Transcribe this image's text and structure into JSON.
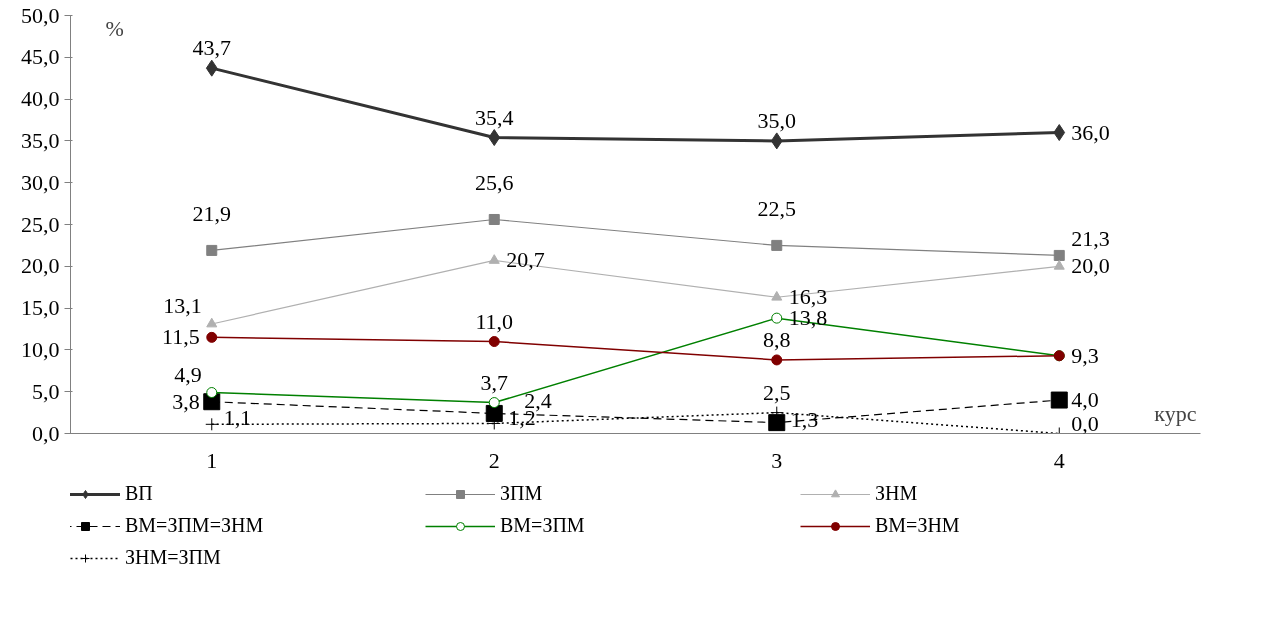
{
  "chart_data": {
    "type": "line",
    "ylabel": "%",
    "xlabel": "курс",
    "categories": [
      "1",
      "2",
      "3",
      "4"
    ],
    "ylim": [
      0,
      50
    ],
    "yticks": [
      {
        "value": 0,
        "label": "0,0"
      },
      {
        "value": 5,
        "label": "5,0"
      },
      {
        "value": 10,
        "label": "10,0"
      },
      {
        "value": 15,
        "label": "15,0"
      },
      {
        "value": 20,
        "label": "20,0"
      },
      {
        "value": 25,
        "label": "25,0"
      },
      {
        "value": 30,
        "label": "30,0"
      },
      {
        "value": 35,
        "label": "35,0"
      },
      {
        "value": 40,
        "label": "40,0"
      },
      {
        "value": 45,
        "label": "45,0"
      },
      {
        "value": 50,
        "label": "50,0"
      }
    ],
    "grid": false,
    "legend": "bottom",
    "series": [
      {
        "name": "ВП",
        "color": "#333333",
        "marker": "diamond",
        "line_style": "solid",
        "values": [
          43.7,
          35.4,
          35.0,
          36.0
        ],
        "value_labels": [
          "43,7",
          "35,4",
          "35,0",
          "36,0"
        ]
      },
      {
        "name": "ЗПМ",
        "color": "#808080",
        "marker": "square",
        "line_style": "solid",
        "values": [
          21.9,
          25.6,
          22.5,
          21.3
        ],
        "value_labels": [
          "21,9",
          "25,6",
          "22,5",
          "21,3"
        ]
      },
      {
        "name": "ЗНМ",
        "color": "#b0b0b0",
        "marker": "triangle",
        "line_style": "solid",
        "values": [
          13.1,
          20.7,
          16.3,
          20.0
        ],
        "value_labels": [
          "13,1",
          "20,7",
          "16,3",
          "20,0"
        ]
      },
      {
        "name": "ВМ=ЗПМ=ЗНМ",
        "color": "#000000",
        "marker": "square",
        "line_style": "dashed",
        "values": [
          3.8,
          2.4,
          1.3,
          4.0
        ],
        "value_labels": [
          "3,8",
          "2,4",
          "1,3",
          "4,0"
        ]
      },
      {
        "name": "ВМ=ЗПМ",
        "color": "#008000",
        "marker": "circle",
        "line_style": "solid",
        "values": [
          4.9,
          3.7,
          13.8,
          9.3
        ],
        "value_labels": [
          "4,9",
          "3,7",
          "13,8",
          "9,3"
        ]
      },
      {
        "name": "ВМ=ЗНМ",
        "color": "#800000",
        "marker": "circle",
        "line_style": "solid",
        "values": [
          11.5,
          11.0,
          8.8,
          9.3
        ],
        "value_labels": [
          "11,5",
          "11,0",
          "8,8",
          null
        ]
      },
      {
        "name": "ЗНМ=ЗПМ",
        "color": "#000000",
        "marker": "cross",
        "line_style": "dotted",
        "values": [
          1.1,
          1.2,
          2.5,
          0.0
        ],
        "value_labels": [
          "1,1",
          "1,2",
          "2,5",
          "0,0"
        ]
      }
    ]
  }
}
